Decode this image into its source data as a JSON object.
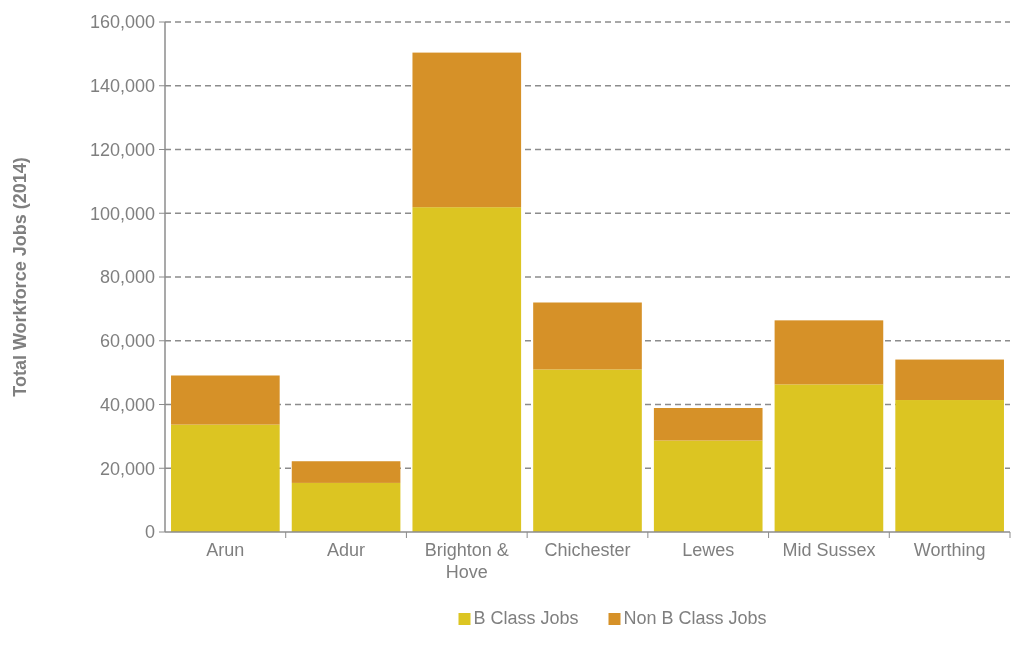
{
  "chart_data": {
    "type": "bar",
    "stacked": true,
    "ylabel": "Total Workforce Jobs (2014)",
    "categories": [
      "Arun",
      "Adur",
      "Brighton & Hove",
      "Chichester",
      "Lewes",
      "Mid Sussex",
      "Worthing"
    ],
    "series": [
      {
        "name": "B Class Jobs",
        "color": "#dcc522",
        "values": [
          33700,
          15400,
          101900,
          51000,
          28700,
          46300,
          41400
        ]
      },
      {
        "name": "Non B Class Jobs",
        "color": "#d69128",
        "values": [
          15400,
          6800,
          48500,
          21000,
          10200,
          20100,
          12700
        ]
      }
    ],
    "ylim": [
      0,
      160000
    ],
    "yticks": [
      {
        "value": 0,
        "label": "0"
      },
      {
        "value": 20000,
        "label": "20,000"
      },
      {
        "value": 40000,
        "label": "40,000"
      },
      {
        "value": 60000,
        "label": "60,000"
      },
      {
        "value": 80000,
        "label": "80,000"
      },
      {
        "value": 100000,
        "label": "100,000"
      },
      {
        "value": 120000,
        "label": "120,000"
      },
      {
        "value": 140000,
        "label": "140,000"
      },
      {
        "value": 160000,
        "label": "160,000"
      }
    ],
    "grid": "y",
    "legend": "bottom"
  }
}
